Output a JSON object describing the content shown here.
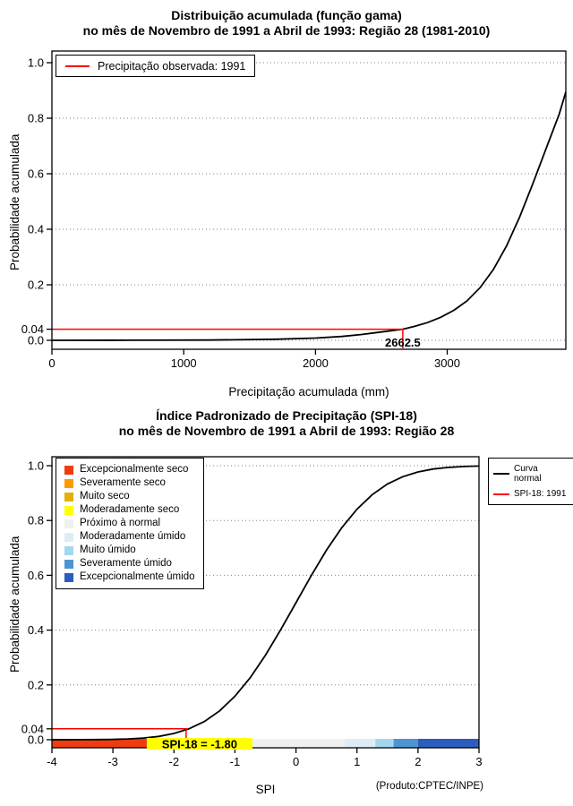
{
  "page": {
    "background": "#ffffff",
    "footnote": "(Produto:CPTEC/INPE)"
  },
  "chart_data": [
    {
      "type": "line",
      "title": "Distribuição acumulada (função gama)",
      "subtitle": "no mês de Novembro de 1991 a Abril de 1993: Região 28 (1981-2010)",
      "xlabel": "Precipitação acumulada (mm)",
      "ylabel": "Probabilidade acumulada",
      "xlim": [
        0,
        3900
      ],
      "ylim": [
        0,
        1.03
      ],
      "grid": "horizontal-dotted",
      "xticks": [
        0,
        1000,
        2000,
        3000
      ],
      "xtick_labels": [
        "0",
        "1000",
        "2000",
        "3000"
      ],
      "yticks": [
        0,
        0.04,
        0.2,
        0.4,
        0.6,
        0.8,
        1.0
      ],
      "ytick_labels": [
        "0.0",
        "0.04",
        "0.2",
        "0.4",
        "0.6",
        "0.8",
        "1.0"
      ],
      "grid_y": [
        0,
        0.2,
        0.4,
        0.6,
        0.8,
        1.0
      ],
      "legend": [
        {
          "label": "Precipitação observada: 1991",
          "color": "#ff0000"
        }
      ],
      "curve": {
        "name": "Distribuição gama acumulada",
        "color": "#000000",
        "x": [
          0,
          600,
          1200,
          1700,
          2000,
          2200,
          2350,
          2500,
          2662.5,
          2750,
          2850,
          2950,
          3050,
          3150,
          3250,
          3350,
          3450,
          3550,
          3650,
          3750,
          3850,
          3900
        ],
        "y": [
          0,
          0.0002,
          0.001,
          0.004,
          0.008,
          0.014,
          0.021,
          0.03,
          0.04,
          0.05,
          0.064,
          0.083,
          0.108,
          0.142,
          0.19,
          0.255,
          0.34,
          0.445,
          0.565,
          0.69,
          0.815,
          0.895
        ]
      },
      "observed": {
        "x": 2662.5,
        "y": 0.04,
        "label": "2662.5",
        "color": "#ff0000"
      }
    },
    {
      "type": "line",
      "title": "Índice Padronizado de Precipitação (SPI-18)",
      "subtitle": "no mês de Novembro de 1991 a Abril de 1993: Região 28",
      "xlabel": "SPI",
      "ylabel": "Probabilidade acumulada",
      "xlim": [
        -4,
        3
      ],
      "ylim": [
        0,
        1.03
      ],
      "grid": "horizontal-dotted",
      "xticks": [
        -4,
        -3,
        -2,
        -1,
        0,
        1,
        2,
        3
      ],
      "xtick_labels": [
        "-4",
        "-3",
        "-2",
        "-1",
        "0",
        "1",
        "2",
        "3"
      ],
      "yticks": [
        0,
        0.04,
        0.2,
        0.4,
        0.6,
        0.8,
        1.0
      ],
      "ytick_labels": [
        "0.0",
        "0.04",
        "0.2",
        "0.4",
        "0.6",
        "0.8",
        "1.0"
      ],
      "grid_y": [
        0,
        0.2,
        0.4,
        0.6,
        0.8,
        1.0
      ],
      "legend_right": [
        {
          "label": "Curva normal",
          "color": "#000000"
        },
        {
          "label": "SPI-18: 1991",
          "color": "#ff0000"
        }
      ],
      "curve": {
        "name": "Curva normal",
        "color": "#000000",
        "x": [
          -4,
          -3.75,
          -3.5,
          -3.25,
          -3,
          -2.75,
          -2.5,
          -2.25,
          -2,
          -1.75,
          -1.5,
          -1.25,
          -1,
          -0.75,
          -0.5,
          -0.25,
          0,
          0.25,
          0.5,
          0.75,
          1,
          1.25,
          1.5,
          1.75,
          2,
          2.25,
          2.5,
          2.75,
          3
        ],
        "y": [
          0.0,
          0.0001,
          0.0002,
          0.0005,
          0.0013,
          0.003,
          0.0062,
          0.0122,
          0.0228,
          0.0401,
          0.0668,
          0.1056,
          0.1587,
          0.2266,
          0.3085,
          0.4013,
          0.5,
          0.5987,
          0.6915,
          0.7734,
          0.8413,
          0.8944,
          0.9332,
          0.9599,
          0.9772,
          0.9878,
          0.9938,
          0.997,
          0.9987
        ]
      },
      "observed": {
        "x": -1.8,
        "y": 0.04,
        "label": "SPI-18 = -1.80",
        "color": "#ff0000",
        "label_background": "#ffff00"
      },
      "categories": [
        {
          "label": "Excepcionalmente seco",
          "color": "#ee3c10",
          "from": -4,
          "to": -2
        },
        {
          "label": "Severamente seco",
          "color": "#ff9900",
          "from": -2,
          "to": -1.6
        },
        {
          "label": "Muito seco",
          "color": "#e2b007",
          "from": -1.6,
          "to": -1.3
        },
        {
          "label": "Moderadamente seco",
          "color": "#ffff00",
          "from": -1.3,
          "to": -0.8
        },
        {
          "label": "Próximo à normal",
          "color": "#f0f0ee",
          "from": -0.8,
          "to": 0.8
        },
        {
          "label": "Moderadamente úmido",
          "color": "#dcedf6",
          "from": 0.8,
          "to": 1.3
        },
        {
          "label": "Muito úmido",
          "color": "#a3d7ef",
          "from": 1.3,
          "to": 1.6
        },
        {
          "label": "Severamente úmido",
          "color": "#4d95d2",
          "from": 1.6,
          "to": 2
        },
        {
          "label": "Excepcionalmente úmido",
          "color": "#2a5dbe",
          "from": 2,
          "to": 3
        }
      ]
    }
  ]
}
